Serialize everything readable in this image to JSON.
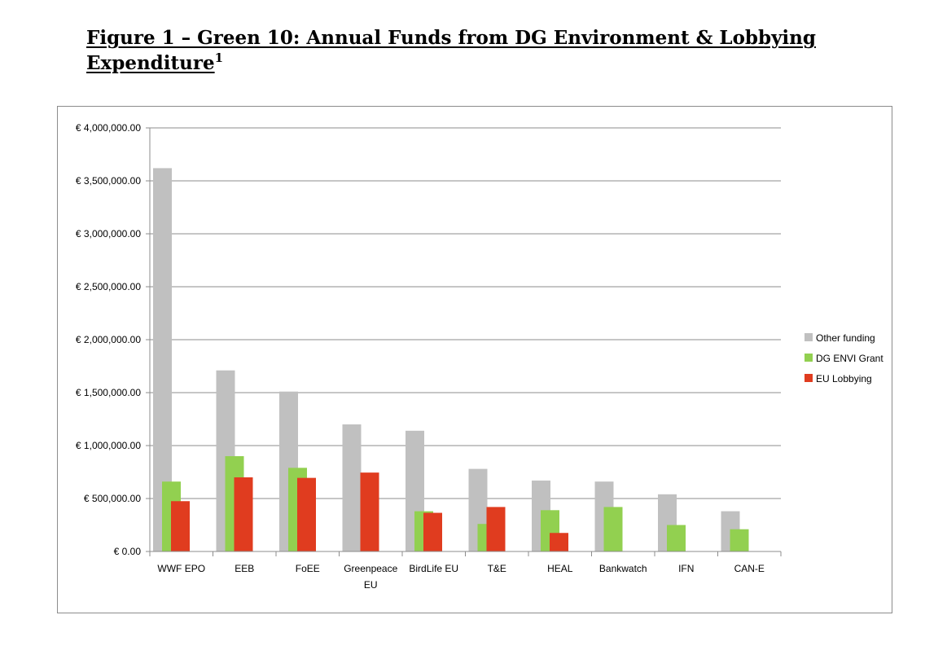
{
  "title": {
    "line1": "Figure 1 – Green 10: Annual Funds from DG Environment & Lobbying",
    "line2": "Expenditure",
    "footnote": "1"
  },
  "chart_data": {
    "type": "bar",
    "title": "Figure 1 – Green 10: Annual Funds from DG Environment & Lobbying Expenditure",
    "xlabel": "",
    "ylabel": "",
    "ylim": [
      0,
      4000000
    ],
    "y_ticks": [
      0,
      500000,
      1000000,
      1500000,
      2000000,
      2500000,
      3000000,
      3500000,
      4000000
    ],
    "y_tick_labels": [
      "€ 0.00",
      "€ 500,000.00",
      "€ 1,000,000.00",
      "€ 1,500,000.00",
      "€ 2,000,000.00",
      "€ 2,500,000.00",
      "€ 3,000,000.00",
      "€ 3,500,000.00",
      "€ 4,000,000.00"
    ],
    "grid": true,
    "legend_position": "right",
    "categories": [
      "WWF EPO",
      "EEB",
      "FoEE",
      "Greenpeace EU",
      "BirdLife EU",
      "T&E",
      "HEAL",
      "Bankwatch",
      "IFN",
      "CAN-E"
    ],
    "category_labels": [
      [
        "WWF EPO"
      ],
      [
        "EEB"
      ],
      [
        "FoEE"
      ],
      [
        "Greenpeace",
        "EU"
      ],
      [
        "BirdLife EU"
      ],
      [
        "T&E"
      ],
      [
        "HEAL"
      ],
      [
        "Bankwatch"
      ],
      [
        "IFN"
      ],
      [
        "CAN-E"
      ]
    ],
    "series": [
      {
        "name": "Other funding",
        "color": "#c0c0c0",
        "values": [
          3620000,
          1710000,
          1510000,
          1200000,
          1140000,
          780000,
          670000,
          660000,
          540000,
          380000
        ]
      },
      {
        "name": "DG ENVI Grant",
        "color": "#92d050",
        "values": [
          660000,
          900000,
          790000,
          0,
          380000,
          260000,
          390000,
          420000,
          250000,
          210000
        ]
      },
      {
        "name": "EU Lobbying",
        "color": "#e03c1f",
        "values": [
          475000,
          700000,
          695000,
          745000,
          365000,
          420000,
          175000,
          0,
          0,
          0
        ]
      }
    ]
  }
}
